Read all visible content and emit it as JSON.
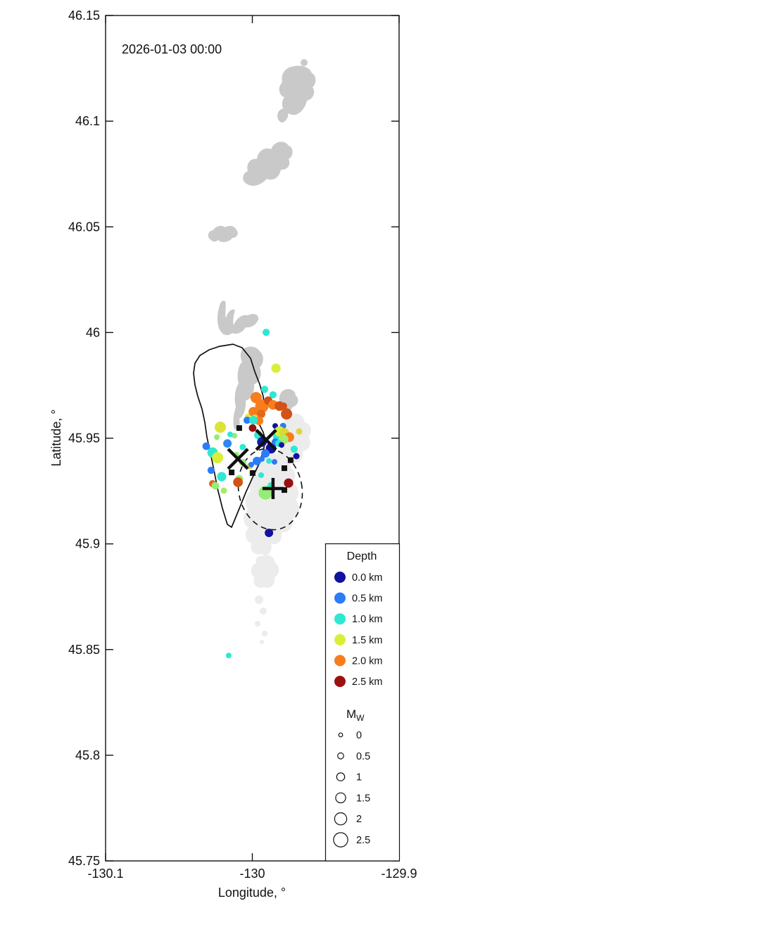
{
  "title": "2026-01-03 00:00",
  "axes": {
    "xlabel": "Longitude, °",
    "ylabel": "Latitude, °",
    "xlim": [
      -130.1,
      -129.9
    ],
    "ylim": [
      45.75,
      46.15
    ],
    "xticks": [
      {
        "value": -130.1,
        "label": "-130.1"
      },
      {
        "value": -130.0,
        "label": "-130"
      },
      {
        "value": -129.9,
        "label": "-129.9"
      }
    ],
    "yticks": [
      {
        "value": 46.15,
        "label": "46.15"
      },
      {
        "value": 46.1,
        "label": "46.1"
      },
      {
        "value": 46.05,
        "label": "46.05"
      },
      {
        "value": 46.0,
        "label": "46"
      },
      {
        "value": 45.95,
        "label": "45.95"
      },
      {
        "value": 45.9,
        "label": "45.9"
      },
      {
        "value": 45.85,
        "label": "45.85"
      },
      {
        "value": 45.8,
        "label": "45.8"
      },
      {
        "value": 45.75,
        "label": "45.75"
      }
    ]
  },
  "legend": {
    "depth": {
      "title": "Depth",
      "items": [
        {
          "label": "0.0 km",
          "depth_km": 0.0
        },
        {
          "label": "0.5 km",
          "depth_km": 0.5
        },
        {
          "label": "1.0 km",
          "depth_km": 1.0
        },
        {
          "label": "1.5 km",
          "depth_km": 1.5
        },
        {
          "label": "2.0 km",
          "depth_km": 2.0
        },
        {
          "label": "2.5 km",
          "depth_km": 2.5
        }
      ]
    },
    "magnitude": {
      "title": "M",
      "subscript": "W",
      "items": [
        {
          "label": "0",
          "mag": 0
        },
        {
          "label": "0.5",
          "mag": 0.5
        },
        {
          "label": "1",
          "mag": 1
        },
        {
          "label": "1.5",
          "mag": 1.5
        },
        {
          "label": "2",
          "mag": 2
        },
        {
          "label": "2.5",
          "mag": 2.5
        }
      ]
    }
  },
  "colormap": {
    "depth_range_km": [
      0,
      2.5
    ],
    "anchors": [
      "#12129e",
      "#2b7cf8",
      "#2ee8d2",
      "#d9ee39",
      "#f87d1d",
      "#9b1111"
    ]
  },
  "chart_data": {
    "type": "scatter",
    "title": "2026-01-03 00:00",
    "xlabel": "Longitude, °",
    "ylabel": "Latitude, °",
    "xlim": [
      -130.1,
      -129.9
    ],
    "ylim": [
      45.75,
      46.15
    ],
    "grid": false,
    "legend_position": "lower-right-inside",
    "earthquakes": [
      {
        "lon": -129.9906,
        "lat": 46.0001,
        "depth_km": 1.0,
        "mag": 0.8
      },
      {
        "lon": -129.9839,
        "lat": 45.9831,
        "depth_km": 1.5,
        "mag": 1.3
      },
      {
        "lon": -130.0161,
        "lat": 45.8472,
        "depth_km": 1.0,
        "mag": 0.4
      },
      {
        "lon": -129.9887,
        "lat": 45.9052,
        "depth_km": 0.0,
        "mag": 1.1
      },
      {
        "lon": -129.9916,
        "lat": 45.9731,
        "depth_km": 1.0,
        "mag": 0.8
      },
      {
        "lon": -129.9859,
        "lat": 45.9705,
        "depth_km": 1.0,
        "mag": 0.8
      },
      {
        "lon": -129.9974,
        "lat": 45.9692,
        "depth_km": 2.0,
        "mag": 1.8
      },
      {
        "lon": -129.9935,
        "lat": 45.9652,
        "depth_km": 2.0,
        "mag": 2.3
      },
      {
        "lon": -129.9892,
        "lat": 45.9678,
        "depth_km": 2.2,
        "mag": 1.1
      },
      {
        "lon": -129.9859,
        "lat": 45.9658,
        "depth_km": 2.0,
        "mag": 1.4
      },
      {
        "lon": -129.9815,
        "lat": 45.9652,
        "depth_km": 2.2,
        "mag": 1.4
      },
      {
        "lon": -129.9993,
        "lat": 45.9625,
        "depth_km": 2.0,
        "mag": 1.4
      },
      {
        "lon": -129.994,
        "lat": 45.9615,
        "depth_km": 2.1,
        "mag": 1.1
      },
      {
        "lon": -129.9983,
        "lat": 45.9595,
        "depth_km": 1.6,
        "mag": 0.8
      },
      {
        "lon": -129.9954,
        "lat": 45.9582,
        "depth_km": 2.0,
        "mag": 1.1
      },
      {
        "lon": -129.9767,
        "lat": 45.9615,
        "depth_km": 2.2,
        "mag": 1.8
      },
      {
        "lon": -130.0031,
        "lat": 45.9602,
        "depth_km": 1.5,
        "mag": 0.4
      },
      {
        "lon": -129.9787,
        "lat": 45.9652,
        "depth_km": 2.2,
        "mag": 0.8
      },
      {
        "lon": -130.0036,
        "lat": 45.9585,
        "depth_km": 0.5,
        "mag": 0.8
      },
      {
        "lon": -129.9993,
        "lat": 45.9585,
        "depth_km": 1.0,
        "mag": 1.1
      },
      {
        "lon": -130.0218,
        "lat": 45.9552,
        "depth_km": 1.55,
        "mag": 1.8
      },
      {
        "lon": -129.9998,
        "lat": 45.9548,
        "depth_km": 2.5,
        "mag": 0.9
      },
      {
        "lon": -130.0242,
        "lat": 45.9505,
        "depth_km": 1.3,
        "mag": 0.4
      },
      {
        "lon": -130.0122,
        "lat": 45.9512,
        "depth_km": 1.3,
        "mag": 0.4
      },
      {
        "lon": -130.0151,
        "lat": 45.9518,
        "depth_km": 1.0,
        "mag": 0.4
      },
      {
        "lon": -129.9791,
        "lat": 45.9558,
        "depth_km": 0.5,
        "mag": 0.6
      },
      {
        "lon": -129.9681,
        "lat": 45.9532,
        "depth_km": 1.6,
        "mag": 0.6
      },
      {
        "lon": -129.9844,
        "lat": 45.9558,
        "depth_km": 0.0,
        "mag": 0.4
      },
      {
        "lon": -129.9959,
        "lat": 45.9515,
        "depth_km": 1.0,
        "mag": 1.1
      },
      {
        "lon": -129.983,
        "lat": 45.9505,
        "depth_km": 1.0,
        "mag": 1.1
      },
      {
        "lon": -129.9815,
        "lat": 45.9532,
        "depth_km": 1.5,
        "mag": 1.6
      },
      {
        "lon": -129.9782,
        "lat": 45.9525,
        "depth_km": 1.6,
        "mag": 1.4
      },
      {
        "lon": -129.9748,
        "lat": 45.9505,
        "depth_km": 2.0,
        "mag": 1.4
      },
      {
        "lon": -129.9787,
        "lat": 45.9495,
        "depth_km": 1.35,
        "mag": 1.4
      },
      {
        "lon": -129.9935,
        "lat": 45.9482,
        "depth_km": 0.05,
        "mag": 1.4
      },
      {
        "lon": -129.9873,
        "lat": 45.9452,
        "depth_km": 0.0,
        "mag": 1.6
      },
      {
        "lon": -129.9911,
        "lat": 45.9428,
        "depth_km": 0.5,
        "mag": 1.1
      },
      {
        "lon": -129.9844,
        "lat": 45.9482,
        "depth_km": 0.5,
        "mag": 0.8
      },
      {
        "lon": -129.982,
        "lat": 45.9475,
        "depth_km": 1.0,
        "mag": 0.8
      },
      {
        "lon": -129.9801,
        "lat": 45.9468,
        "depth_km": 0.0,
        "mag": 0.4
      },
      {
        "lon": -129.97,
        "lat": 45.9415,
        "depth_km": 0.0,
        "mag": 0.6
      },
      {
        "lon": -129.9715,
        "lat": 45.9448,
        "depth_km": 1.0,
        "mag": 0.8
      },
      {
        "lon": -129.9969,
        "lat": 45.9392,
        "depth_km": 0.5,
        "mag": 1.1
      },
      {
        "lon": -129.9935,
        "lat": 45.9402,
        "depth_km": 0.5,
        "mag": 0.4
      },
      {
        "lon": -129.9849,
        "lat": 45.9388,
        "depth_km": 0.5,
        "mag": 0.4
      },
      {
        "lon": -129.9887,
        "lat": 45.9392,
        "depth_km": 1.0,
        "mag": 0.4
      },
      {
        "lon": -130.0017,
        "lat": 45.9368,
        "depth_km": 1.6,
        "mag": 0.6
      },
      {
        "lon": -130.0065,
        "lat": 45.9458,
        "depth_km": 1.0,
        "mag": 0.6
      },
      {
        "lon": -130.0314,
        "lat": 45.9462,
        "depth_km": 0.5,
        "mag": 0.9
      },
      {
        "lon": -130.0271,
        "lat": 45.9432,
        "depth_km": 1.0,
        "mag": 1.6
      },
      {
        "lon": -130.0237,
        "lat": 45.9408,
        "depth_km": 1.5,
        "mag": 1.8
      },
      {
        "lon": -130.017,
        "lat": 45.9475,
        "depth_km": 0.55,
        "mag": 1.1
      },
      {
        "lon": -130.0108,
        "lat": 45.9422,
        "depth_km": 1.3,
        "mag": 0.4
      },
      {
        "lon": -130.0065,
        "lat": 45.9385,
        "depth_km": 1.3,
        "mag": 0.8
      },
      {
        "lon": -130.0281,
        "lat": 45.9348,
        "depth_km": 0.5,
        "mag": 0.8
      },
      {
        "lon": -130.0209,
        "lat": 45.9318,
        "depth_km": 1.0,
        "mag": 1.3
      },
      {
        "lon": -130.0089,
        "lat": 45.9308,
        "depth_km": 1.3,
        "mag": 0.9
      },
      {
        "lon": -130.0098,
        "lat": 45.9292,
        "depth_km": 2.2,
        "mag": 1.4
      },
      {
        "lon": -130.0271,
        "lat": 45.9285,
        "depth_km": 2.1,
        "mag": 0.8
      },
      {
        "lon": -130.0252,
        "lat": 45.9275,
        "depth_km": 1.3,
        "mag": 0.9
      },
      {
        "lon": -130.0194,
        "lat": 45.9252,
        "depth_km": 1.35,
        "mag": 0.6
      },
      {
        "lon": -129.9911,
        "lat": 45.9242,
        "depth_km": 1.3,
        "mag": 2.4
      },
      {
        "lon": -129.9873,
        "lat": 45.9275,
        "depth_km": 1.05,
        "mag": 0.8
      },
      {
        "lon": -129.994,
        "lat": 45.9325,
        "depth_km": 1.0,
        "mag": 0.4
      },
      {
        "lon": -130.0007,
        "lat": 45.9375,
        "depth_km": 0.5,
        "mag": 0.4
      },
      {
        "lon": -129.9753,
        "lat": 45.9288,
        "depth_km": 2.5,
        "mag": 1.3
      }
    ],
    "stations_squares": [
      {
        "lon": -130.0089,
        "lat": 45.9548
      },
      {
        "lon": -129.9739,
        "lat": 45.9396
      },
      {
        "lon": -129.9782,
        "lat": 45.9358
      },
      {
        "lon": -130.0141,
        "lat": 45.9338
      },
      {
        "lon": -129.9998,
        "lat": 45.9335
      },
      {
        "lon": -129.9782,
        "lat": 45.9255
      }
    ],
    "x_markers": [
      {
        "lon": -129.9906,
        "lat": 45.9492
      },
      {
        "lon": -130.0098,
        "lat": 45.9402
      }
    ],
    "plus_marker": {
      "lon": -129.9859,
      "lat": 45.9262
    }
  }
}
